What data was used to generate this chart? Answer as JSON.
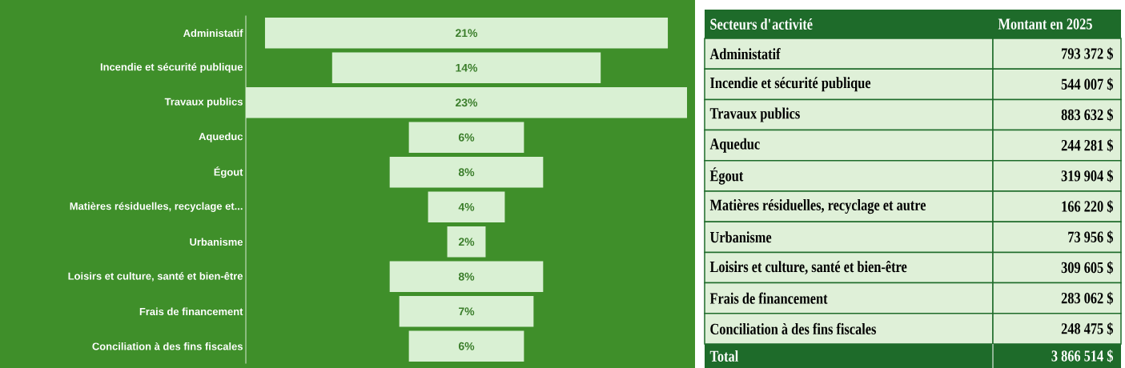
{
  "chart_data": [
    {
      "type": "other",
      "categories": [
        "Administatif",
        "Incendie et sécurité publique",
        "Travaux publics",
        "Aqueduc",
        "Égout",
        "Matières résiduelles, recyclage et...",
        "Urbanisme",
        "Loisirs et culture, santé et bien-être",
        "Frais de financement",
        "Conciliation à des fins fiscales"
      ],
      "values": [
        21,
        14,
        23,
        6,
        8,
        4,
        2,
        8,
        7,
        6
      ],
      "value_labels": [
        "21%",
        "14%",
        "23%",
        "6%",
        "8%",
        "4%",
        "2%",
        "8%",
        "7%",
        "6%"
      ],
      "color": "#d9f0d3"
    },
    {
      "type": "other",
      "categories": [
        "Administatif",
        "Incendie et sécurité publique",
        "Travaux publics",
        "Aqueduc",
        "Égout",
        "Matières résiduelles, recyclage et autre",
        "Urbanisme",
        "Loisirs et culture, santé et bien-être",
        "Frais de financement",
        "Conciliation à des fins fiscales"
      ],
      "values": [
        793372,
        544007,
        883632,
        244281,
        319904,
        166220,
        73956,
        309605,
        283062,
        248475
      ],
      "value_labels": [
        "793 372 $",
        "544 007 $",
        "883 632 $",
        "244 281 $",
        "319 904 $",
        "166 220 $",
        "73 956 $",
        "309 605 $",
        "283 062 $",
        "248 475 $"
      ],
      "annotations": [
        "Secteurs d'activité",
        "Montant en 2025",
        "Total",
        "3 866 514 $"
      ],
      "color": "#dff0d8"
    }
  ]
}
